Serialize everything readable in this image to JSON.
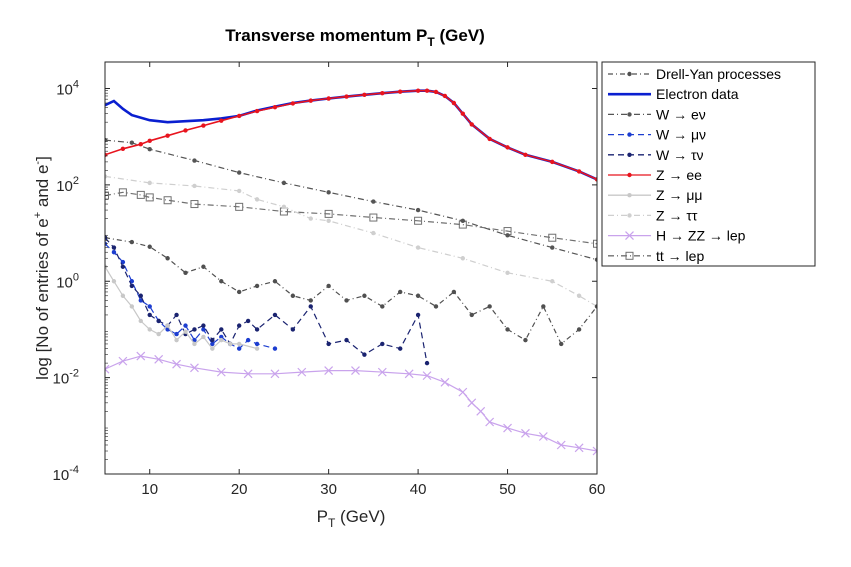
{
  "chart_data": {
    "type": "line",
    "title": "Transverse momentum P",
    "title_sub": "T",
    "title_unit": " (GeV)",
    "xlabel": "P",
    "xlabel_sub": "T",
    "xlabel_unit": " (GeV)",
    "ylabel": "log [No of entries of e",
    "ylabel_sup1": "+",
    "ylabel_mid": " and e",
    "ylabel_sup2": "-",
    "ylabel_end": "]",
    "xlim": [
      5,
      60
    ],
    "ylim_log10": [
      -4,
      4.55
    ],
    "y_scale": "log",
    "x_ticks": [
      10,
      20,
      30,
      40,
      50,
      60
    ],
    "y_ticks": [
      {
        "base": "10",
        "exp": "-4",
        "log": -4
      },
      {
        "base": "10",
        "exp": "-2",
        "log": -2
      },
      {
        "base": "10",
        "exp": "0",
        "log": 0
      },
      {
        "base": "10",
        "exp": "2",
        "log": 2
      },
      {
        "base": "10",
        "exp": "4",
        "log": 4
      }
    ],
    "legend_position": "outside-right",
    "series": [
      {
        "name": "Drell-Yan processes",
        "color": "#505050",
        "dash": "5,3,1,3",
        "marker": "dot",
        "x": [
          5,
          8,
          10,
          12,
          14,
          16,
          18,
          20,
          22,
          24,
          26,
          28,
          30,
          32,
          34,
          36,
          38,
          40,
          42,
          44,
          46,
          48,
          50,
          52,
          54,
          56,
          58,
          60
        ],
        "y": [
          8.0,
          6.5,
          5.2,
          3.0,
          1.5,
          2.0,
          1.0,
          0.6,
          0.8,
          1.0,
          0.5,
          0.4,
          0.8,
          0.4,
          0.5,
          0.3,
          0.6,
          0.5,
          0.3,
          0.6,
          0.2,
          0.3,
          0.1,
          0.06,
          0.3,
          0.05,
          0.1,
          0.3
        ]
      },
      {
        "name": "Electron data",
        "color": "#0a1fd0",
        "dash": "",
        "marker": "none",
        "x": [
          5,
          6,
          7,
          8,
          10,
          12,
          14,
          16,
          18,
          20,
          22,
          24,
          26,
          28,
          30,
          32,
          34,
          36,
          38,
          40,
          41,
          42,
          43,
          44,
          45,
          46,
          48,
          50,
          52,
          55,
          58,
          60
        ],
        "y": [
          4500,
          5500,
          3800,
          2800,
          2200,
          2000,
          2100,
          2200,
          2400,
          2700,
          3500,
          4200,
          5000,
          5600,
          6200,
          6800,
          7400,
          8000,
          8600,
          9000,
          9000,
          8500,
          7000,
          5000,
          3000,
          1800,
          900,
          600,
          420,
          300,
          190,
          130
        ]
      },
      {
        "name": "W → eν",
        "color": "#555555",
        "dash": "6,3,1,3",
        "marker": "dot",
        "x": [
          5,
          8,
          10,
          15,
          20,
          25,
          30,
          35,
          40,
          45,
          50,
          55,
          60
        ],
        "y": [
          850,
          750,
          550,
          320,
          180,
          110,
          70,
          45,
          30,
          18,
          9,
          5,
          2.8
        ]
      },
      {
        "name": "W → μν",
        "color": "#1c3dd0",
        "dash": "6,4",
        "marker": "dot",
        "x": [
          5,
          6,
          7,
          8,
          9,
          10,
          11,
          12,
          13,
          14,
          15,
          16,
          17,
          18,
          19,
          20,
          21,
          22,
          24
        ],
        "y": [
          6.0,
          4.0,
          2.5,
          1.0,
          0.4,
          0.3,
          0.15,
          0.1,
          0.08,
          0.12,
          0.06,
          0.1,
          0.05,
          0.07,
          0.05,
          0.04,
          0.06,
          0.05,
          0.04
        ]
      },
      {
        "name": "W → τν",
        "color": "#1a2370",
        "dash": "6,4",
        "marker": "dot",
        "x": [
          5,
          6,
          7,
          8,
          9,
          10,
          11,
          12,
          13,
          14,
          15,
          16,
          17,
          18,
          19,
          20,
          21,
          22,
          24,
          26,
          28,
          30,
          32,
          34,
          36,
          38,
          40,
          41
        ],
        "y": [
          8.0,
          5.0,
          2.0,
          0.8,
          0.5,
          0.2,
          0.15,
          0.12,
          0.2,
          0.08,
          0.1,
          0.12,
          0.06,
          0.1,
          0.05,
          0.12,
          0.15,
          0.1,
          0.2,
          0.1,
          0.3,
          0.05,
          0.06,
          0.03,
          0.05,
          0.04,
          0.2,
          0.02
        ]
      },
      {
        "name": "Z → ee",
        "color": "#e8141e",
        "dash": "",
        "marker": "dot",
        "x": [
          5,
          7,
          9,
          10,
          12,
          14,
          16,
          18,
          20,
          22,
          24,
          26,
          28,
          30,
          32,
          34,
          36,
          38,
          40,
          41,
          42,
          43,
          44,
          45,
          46,
          48,
          50,
          52,
          55,
          58,
          60
        ],
        "y": [
          420,
          560,
          700,
          820,
          1050,
          1350,
          1700,
          2150,
          2700,
          3400,
          4100,
          4900,
          5600,
          6200,
          6800,
          7400,
          8000,
          8600,
          9000,
          9000,
          8500,
          7000,
          5000,
          3000,
          1800,
          900,
          600,
          420,
          300,
          190,
          130
        ]
      },
      {
        "name": "Z → μμ",
        "color": "#c8c8c8",
        "dash": "",
        "marker": "dot",
        "x": [
          5,
          6,
          7,
          8,
          9,
          10,
          11,
          12,
          13,
          14,
          15,
          16,
          17,
          18,
          19,
          20,
          22
        ],
        "y": [
          2.0,
          1.0,
          0.5,
          0.3,
          0.15,
          0.1,
          0.08,
          0.12,
          0.06,
          0.09,
          0.05,
          0.07,
          0.04,
          0.06,
          0.05,
          0.05,
          0.04
        ]
      },
      {
        "name": "Z → ττ",
        "color": "#cfcfcf",
        "dash": "6,3,1,3",
        "marker": "dot",
        "x": [
          5,
          10,
          15,
          20,
          22,
          25,
          28,
          30,
          35,
          40,
          45,
          50,
          55,
          58,
          60
        ],
        "y": [
          150,
          110,
          95,
          75,
          50,
          35,
          20,
          18,
          10,
          5,
          3,
          1.5,
          1.0,
          0.5,
          0.3
        ]
      },
      {
        "name": "H → ZZ → lep",
        "color": "#c9a3ec",
        "dash": "",
        "marker": "x",
        "x": [
          5,
          7,
          9,
          11,
          13,
          15,
          18,
          21,
          24,
          27,
          30,
          33,
          36,
          39,
          41,
          43,
          45,
          46,
          47,
          48,
          50,
          52,
          54,
          56,
          58,
          60
        ],
        "y": [
          0.015,
          0.022,
          0.028,
          0.024,
          0.019,
          0.016,
          0.013,
          0.012,
          0.012,
          0.013,
          0.014,
          0.014,
          0.013,
          0.012,
          0.011,
          0.008,
          0.005,
          0.003,
          0.002,
          0.0012,
          0.0009,
          0.0007,
          0.0006,
          0.0004,
          0.00035,
          0.0003
        ]
      },
      {
        "name": "tt → lep",
        "color": "#707070",
        "dash": "6,3,1,3",
        "marker": "square",
        "x": [
          5,
          7,
          9,
          10,
          12,
          15,
          20,
          25,
          30,
          35,
          40,
          45,
          50,
          55,
          60
        ],
        "y": [
          60,
          70,
          62,
          55,
          48,
          40,
          35,
          28,
          25,
          21,
          18,
          15,
          11,
          8,
          6
        ]
      }
    ]
  }
}
